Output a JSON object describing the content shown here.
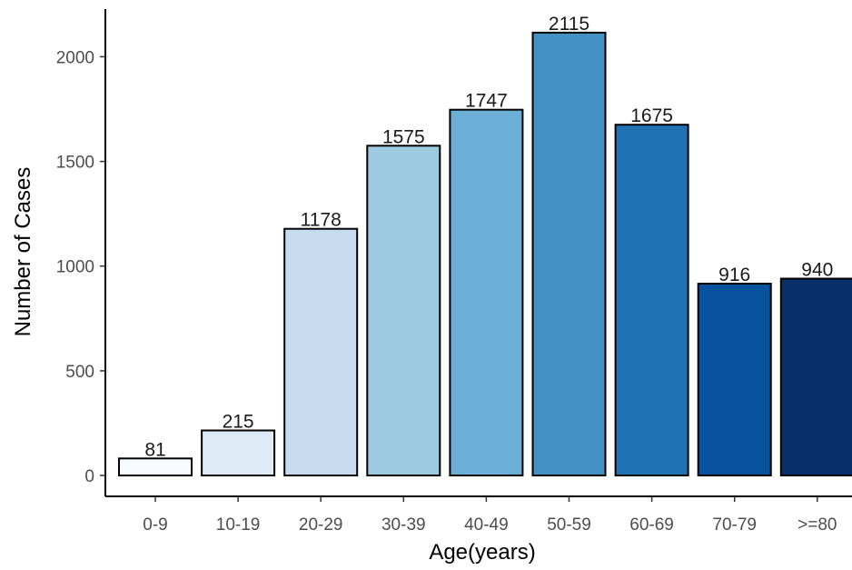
{
  "chart_data": {
    "type": "bar",
    "title": "",
    "xlabel": "Age(years)",
    "ylabel": "Number of Cases",
    "categories": [
      "0-9",
      "10-19",
      "20-29",
      "30-39",
      "40-49",
      "50-59",
      "60-69",
      "70-79",
      ">=80"
    ],
    "values": [
      81,
      215,
      1178,
      1575,
      1747,
      2115,
      1675,
      916,
      940
    ],
    "data_labels": [
      "81",
      "215",
      "1178",
      "1575",
      "1747",
      "2115",
      "1675",
      "916",
      "940"
    ],
    "colors": [
      "#f7fbff",
      "#deebf7",
      "#c6dbef",
      "#9ecae1",
      "#6baed6",
      "#4292c6",
      "#2171b5",
      "#08519c",
      "#08306b"
    ],
    "bar_outline": "#000000",
    "ylim": [
      0,
      2200
    ],
    "yticks": [
      0,
      500,
      1000,
      1500,
      2000
    ],
    "ytick_labels": [
      "0",
      "500",
      "1000",
      "1500",
      "2000"
    ],
    "grid": false,
    "legend": "none"
  }
}
